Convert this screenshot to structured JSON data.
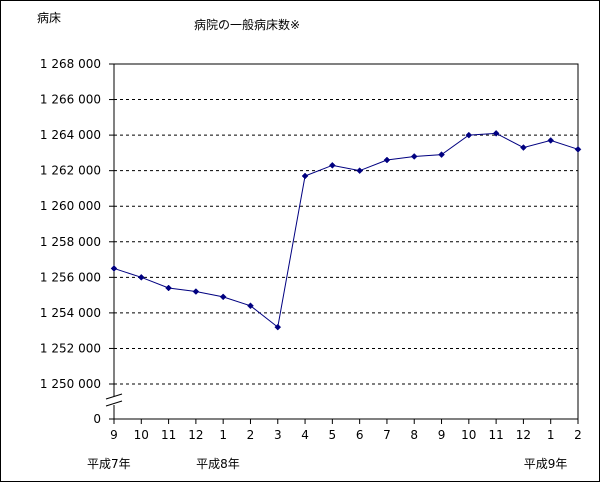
{
  "chart_data": {
    "type": "line",
    "title": "病院の一般病床数※",
    "ylabel": "病床",
    "xlabel": "",
    "ylim": [
      1250000,
      1268000
    ],
    "y_ticks": [
      {
        "value": 1268000,
        "label": "1 268 000"
      },
      {
        "value": 1266000,
        "label": "1 266 000"
      },
      {
        "value": 1264000,
        "label": "1 264 000"
      },
      {
        "value": 1262000,
        "label": "1 262 000"
      },
      {
        "value": 1260000,
        "label": "1 260 000"
      },
      {
        "value": 1258000,
        "label": "1 258 000"
      },
      {
        "value": 1256000,
        "label": "1 256 000"
      },
      {
        "value": 1254000,
        "label": "1 254 000"
      },
      {
        "value": 1252000,
        "label": "1 252 000"
      },
      {
        "value": 1250000,
        "label": "1 250 000"
      }
    ],
    "y_zero_label": "0",
    "y_axis_break": true,
    "categories": [
      "9",
      "10",
      "11",
      "12",
      "1",
      "2",
      "3",
      "4",
      "5",
      "6",
      "7",
      "8",
      "9",
      "10",
      "11",
      "12",
      "1",
      "2"
    ],
    "year_labels": [
      {
        "index": 0,
        "label": "平成7年"
      },
      {
        "index": 4,
        "label": "平成8年"
      },
      {
        "index": 16,
        "label": "平成9年"
      }
    ],
    "series": [
      {
        "values": [
          1256500,
          1256000,
          1255400,
          1255200,
          1254900,
          1254400,
          1253200,
          1261700,
          1262300,
          1262000,
          1262600,
          1262800,
          1262900,
          1264000,
          1264100,
          1263300,
          1263700,
          1263200
        ]
      }
    ],
    "line_color": "#000080",
    "grid": "horizontal-dashed"
  }
}
